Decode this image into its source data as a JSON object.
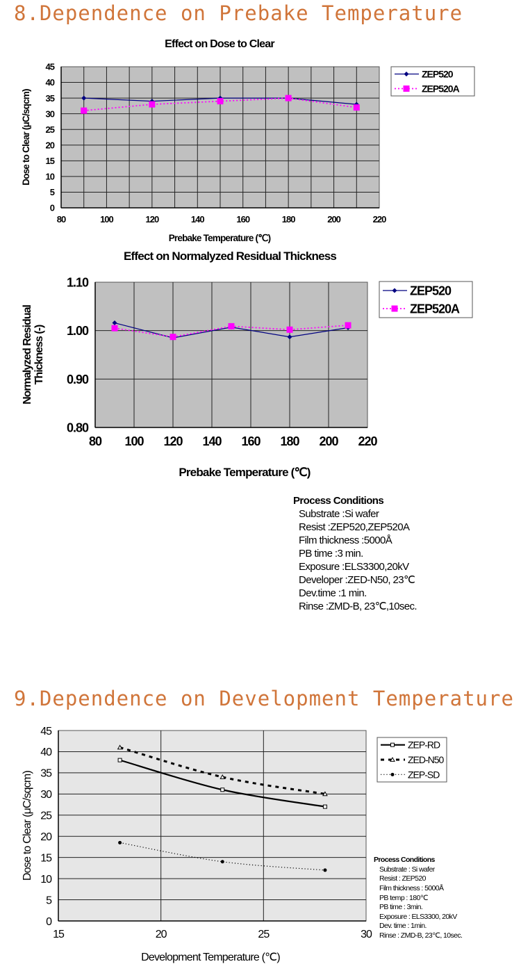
{
  "sections": [
    {
      "title": "8.Dependence on Prebake Temperature"
    },
    {
      "title": "9.Dependence on Development Temperature"
    }
  ],
  "colors": {
    "section_title": "#d0753a",
    "plot_bg_gray": "#c0c0c0",
    "plot_bg_light": "#e6e6e6",
    "series_navy": "#000080",
    "series_magenta": "#ff00ff",
    "grid": "#000000"
  },
  "chart_data": [
    {
      "type": "line",
      "title": "Effect on Dose to Clear",
      "xlabel": "Prebake Temperature (℃)",
      "ylabel": "Dose to Clear (μC/sqcm)",
      "xlim": [
        80,
        220
      ],
      "ylim": [
        0,
        45
      ],
      "xticks": [
        "80",
        "100",
        "120",
        "140",
        "160",
        "180",
        "200",
        "220"
      ],
      "yticks": [
        "0",
        "5",
        "10",
        "15",
        "20",
        "25",
        "30",
        "35",
        "40",
        "45"
      ],
      "grid": true,
      "legend_position": "right",
      "x": [
        90,
        120,
        150,
        180,
        210
      ],
      "series": [
        {
          "name": "ZEP520",
          "marker": "diamond",
          "line": "solid",
          "values": [
            35,
            34,
            35,
            35,
            33
          ]
        },
        {
          "name": "ZEP520A",
          "marker": "square",
          "line": "dotted",
          "values": [
            31,
            33,
            34,
            35,
            32
          ]
        }
      ]
    },
    {
      "type": "line",
      "title": "Effect on Normalyzed Residual Thickness",
      "xlabel": "Prebake Temperature (℃)",
      "ylabel": "Normalyzed Residual Thickness (-)",
      "xlim": [
        80,
        220
      ],
      "ylim": [
        0.8,
        1.1
      ],
      "xticks": [
        "80",
        "100",
        "120",
        "140",
        "160",
        "180",
        "200",
        "220"
      ],
      "yticks": [
        "0.80",
        "0.90",
        "1.00",
        "1.10"
      ],
      "grid": true,
      "legend_position": "right",
      "x": [
        90,
        120,
        150,
        180,
        210
      ],
      "series": [
        {
          "name": "ZEP520",
          "marker": "diamond",
          "line": "solid",
          "values": [
            1.016,
            0.985,
            1.007,
            0.987,
            1.006
          ]
        },
        {
          "name": "ZEP520A",
          "marker": "square",
          "line": "dotted",
          "values": [
            1.005,
            0.987,
            1.009,
            1.002,
            1.011
          ]
        }
      ],
      "annotation": {
        "heading": "Process Conditions",
        "lines": [
          "Substrate :Si wafer",
          "Resist :ZEP520,ZEP520A",
          "Film thickness :5000Å",
          "PB time :3 min.",
          "Exposure :ELS3300,20kV",
          "Developer :ZED-N50, 23℃",
          "Dev.time :1 min.",
          "Rinse :ZMD-B, 23℃,10sec."
        ]
      }
    },
    {
      "type": "line",
      "title": "",
      "xlabel": "Development Temperature (℃)",
      "ylabel": "Dose to Clear (μC/sqcm)",
      "xlim": [
        15,
        30
      ],
      "ylim": [
        0,
        45
      ],
      "xticks": [
        "15",
        "20",
        "25",
        "30"
      ],
      "yticks": [
        "0",
        "5",
        "10",
        "15",
        "20",
        "25",
        "30",
        "35",
        "40",
        "45"
      ],
      "grid": true,
      "legend_position": "right",
      "x": [
        18,
        23,
        28
      ],
      "series": [
        {
          "name": "ZEP-RD",
          "marker": "open-square",
          "line": "solid",
          "values": [
            38,
            31,
            27
          ]
        },
        {
          "name": "ZED-N50",
          "marker": "open-triangle",
          "line": "dashed",
          "values": [
            41,
            34,
            30
          ]
        },
        {
          "name": "ZEP-SD",
          "marker": "dot",
          "line": "dotted",
          "values": [
            18.5,
            14,
            12
          ]
        }
      ],
      "annotation": {
        "heading": "Process Conditions",
        "lines": [
          "Substrate : Si wafer",
          "Resist : ZEP520",
          "Film thickness : 5000Å",
          "PB temp : 180℃",
          "PB time : 3min.",
          "Exposure : ELS3300, 20kV",
          "Dev. time : 1min.",
          "Rinse : ZMD-B, 23℃, 10sec."
        ]
      }
    }
  ]
}
